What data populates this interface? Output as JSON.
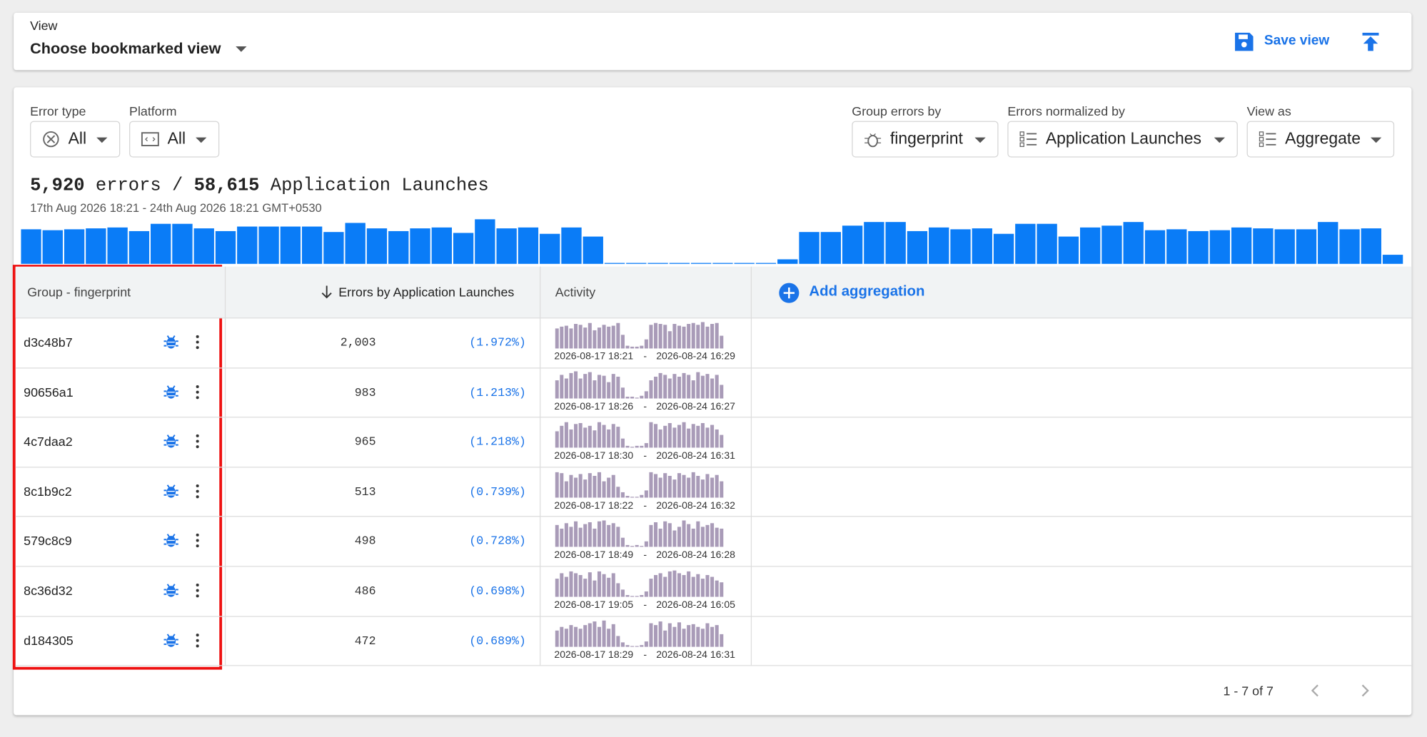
{
  "view_bar": {
    "label": "View",
    "selected": "Choose bookmarked view",
    "save": "Save view"
  },
  "filters": [
    {
      "label": "Error type",
      "value": "All"
    },
    {
      "label": "Platform",
      "value": "All"
    },
    {
      "label": "Group errors by",
      "value": "fingerprint"
    },
    {
      "label": "Errors normalized by",
      "value": "Application Launches"
    },
    {
      "label": "View as",
      "value": "Aggregate"
    }
  ],
  "summary": {
    "errors": "5,920",
    "errors_unit": "errors /",
    "launches": "58,615",
    "launches_unit": "Application Launches",
    "range": "17th Aug 2026 18:21 - 24th Aug 2026 18:21 GMT+0530"
  },
  "histogram": {
    "values": [
      38,
      37,
      38,
      39,
      40,
      36,
      44,
      44,
      39,
      36,
      41,
      41,
      41,
      41,
      35,
      45,
      39,
      36,
      39,
      40,
      34,
      49,
      39,
      40,
      33,
      40,
      30,
      0,
      0,
      0,
      0,
      0,
      0,
      0,
      0,
      5,
      35,
      35,
      42,
      46,
      46,
      36,
      40,
      38,
      39,
      33,
      44,
      44,
      30,
      40,
      42,
      46,
      37,
      38,
      36,
      37,
      40,
      39,
      38,
      38,
      46,
      38,
      39,
      10
    ]
  },
  "table": {
    "headers": [
      "Group - fingerprint",
      "Errors by Application Launches",
      "Activity"
    ],
    "add_aggregation": "Add aggregation",
    "separator": "-",
    "rows": [
      {
        "group": "d3c48b7",
        "count": "2,003",
        "percent": "(1.972%)",
        "start": "2026-08-17 18:21",
        "end": "2026-08-24 16:29",
        "activity": [
          22,
          24,
          25,
          22,
          27,
          26,
          23,
          28,
          20,
          23,
          26,
          24,
          25,
          28,
          15,
          3,
          2,
          2,
          3,
          10,
          26,
          28,
          27,
          26,
          19,
          27,
          25,
          24,
          27,
          28,
          26,
          29,
          24,
          27,
          28,
          14
        ]
      },
      {
        "group": "90656a1",
        "count": "983",
        "percent": "(1.213%)",
        "start": "2026-08-17 18:26",
        "end": "2026-08-24 16:27",
        "activity": [
          20,
          26,
          22,
          28,
          30,
          22,
          27,
          29,
          20,
          26,
          25,
          18,
          27,
          24,
          12,
          2,
          2,
          1,
          3,
          8,
          20,
          24,
          28,
          26,
          22,
          27,
          24,
          28,
          26,
          20,
          29,
          25,
          27,
          22,
          26,
          15
        ]
      },
      {
        "group": "4c7daa2",
        "count": "965",
        "percent": "(1.218%)",
        "start": "2026-08-17 18:30",
        "end": "2026-08-24 16:31",
        "activity": [
          18,
          24,
          28,
          20,
          26,
          27,
          22,
          24,
          19,
          28,
          25,
          20,
          26,
          23,
          10,
          2,
          1,
          2,
          2,
          5,
          28,
          26,
          20,
          24,
          27,
          22,
          25,
          28,
          21,
          26,
          24,
          27,
          22,
          25,
          20,
          14
        ]
      },
      {
        "group": "8c1b9c2",
        "count": "513",
        "percent": "(0.739%)",
        "start": "2026-08-17 18:22",
        "end": "2026-08-24 16:32",
        "activity": [
          28,
          27,
          18,
          25,
          22,
          26,
          20,
          27,
          24,
          28,
          18,
          22,
          25,
          12,
          6,
          2,
          1,
          1,
          3,
          8,
          28,
          26,
          22,
          27,
          24,
          20,
          27,
          25,
          22,
          28,
          24,
          20,
          26,
          22,
          25,
          18
        ]
      },
      {
        "group": "579c8c9",
        "count": "498",
        "percent": "(0.728%)",
        "start": "2026-08-17 18:49",
        "end": "2026-08-24 16:28",
        "activity": [
          24,
          20,
          26,
          22,
          28,
          21,
          25,
          27,
          20,
          28,
          29,
          24,
          26,
          22,
          10,
          2,
          1,
          2,
          1,
          6,
          24,
          27,
          20,
          28,
          26,
          18,
          22,
          29,
          25,
          20,
          28,
          22,
          24,
          26,
          21,
          20
        ]
      },
      {
        "group": "8c36d32",
        "count": "486",
        "percent": "(0.698%)",
        "start": "2026-08-17 19:05",
        "end": "2026-08-24 16:05",
        "activity": [
          20,
          26,
          22,
          28,
          26,
          24,
          20,
          27,
          18,
          28,
          25,
          21,
          26,
          15,
          8,
          2,
          1,
          1,
          2,
          6,
          20,
          24,
          26,
          22,
          28,
          29,
          26,
          24,
          28,
          22,
          25,
          20,
          24,
          22,
          18,
          16
        ]
      },
      {
        "group": "d184305",
        "count": "472",
        "percent": "(0.689%)",
        "start": "2026-08-17 18:29",
        "end": "2026-08-24 16:31",
        "activity": [
          18,
          22,
          20,
          24,
          22,
          20,
          24,
          26,
          28,
          22,
          29,
          20,
          25,
          12,
          5,
          2,
          1,
          1,
          2,
          6,
          26,
          24,
          28,
          18,
          26,
          22,
          27,
          20,
          24,
          25,
          22,
          20,
          26,
          22,
          24,
          14
        ]
      }
    ]
  },
  "pagination": "1 - 7 of 7"
}
